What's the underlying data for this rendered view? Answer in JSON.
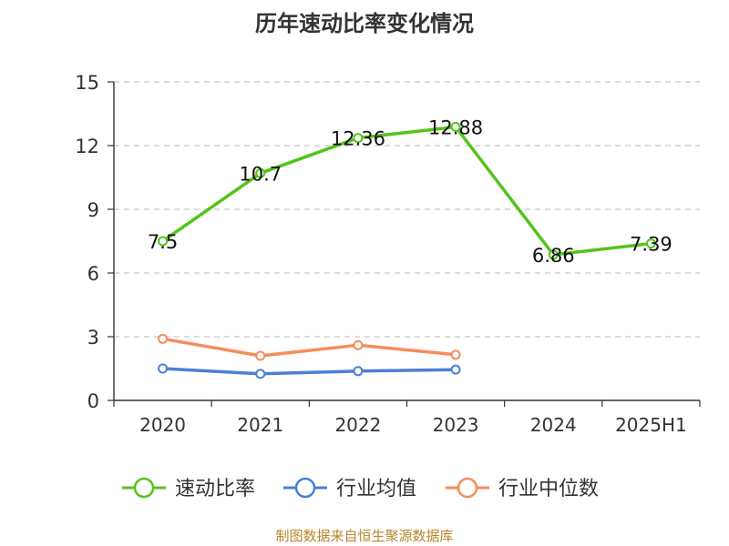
{
  "chart_data": {
    "type": "line",
    "title": "历年速动比率变化情况",
    "categories": [
      "2020",
      "2021",
      "2022",
      "2023",
      "2024",
      "2025H1"
    ],
    "ylim": [
      0,
      15
    ],
    "yticks": [
      0,
      3,
      6,
      9,
      12,
      15
    ],
    "grid": true,
    "legend_position": "bottom",
    "series": [
      {
        "name": "速动比率",
        "color": "#52c41a",
        "values": [
          7.5,
          10.7,
          12.36,
          12.88,
          6.86,
          7.39
        ],
        "labels": [
          "7.5",
          "10.7",
          "12.36",
          "12.88",
          "6.86",
          "7.39"
        ]
      },
      {
        "name": "行业均值",
        "color": "#4a7fd8",
        "values": [
          1.5,
          1.25,
          1.38,
          1.45,
          null,
          null
        ]
      },
      {
        "name": "行业中位数",
        "color": "#f58d5c",
        "values": [
          2.9,
          2.1,
          2.6,
          2.15,
          null,
          null
        ]
      }
    ]
  },
  "source_text": "制图数据来自恒生聚源数据库"
}
